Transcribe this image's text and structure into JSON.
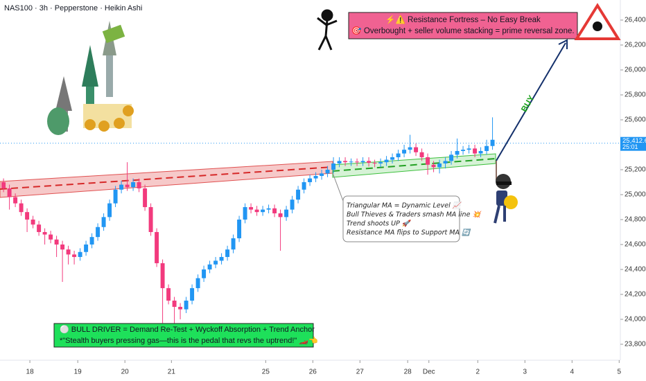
{
  "chart_data": {
    "type": "candlestick",
    "title": "NAS100 · 3h · Pepperstone · Heikin Ashi",
    "up_color": "#2196f3",
    "down_color": "#f23a7d",
    "xlim": [
      -0.6,
      104.7
    ],
    "xticks": [
      {
        "value": 4.47,
        "label": "18"
      },
      {
        "value": 12.6,
        "label": "19"
      },
      {
        "value": 20.6,
        "label": "20"
      },
      {
        "value": 28.5,
        "label": "21"
      },
      {
        "value": 44.5,
        "label": "25"
      },
      {
        "value": 52.5,
        "label": "26"
      },
      {
        "value": 60.5,
        "label": "27"
      },
      {
        "value": 68.6,
        "label": "28"
      },
      {
        "value": 72.2,
        "label": "Dec"
      },
      {
        "value": 80.5,
        "label": "2"
      },
      {
        "value": 88.5,
        "label": "3"
      },
      {
        "value": 96.5,
        "label": "4"
      },
      {
        "value": 104.5,
        "label": "5"
      }
    ],
    "ylim": [
      23672,
      26561
    ],
    "yticks": [
      {
        "value": 23800,
        "label": "23,800.0"
      },
      {
        "value": 24000,
        "label": "24,000.0"
      },
      {
        "value": 24200,
        "label": "24,200.0"
      },
      {
        "value": 24400,
        "label": "24,400.0"
      },
      {
        "value": 24600,
        "label": "24,600.0"
      },
      {
        "value": 24800,
        "label": "24,800.0"
      },
      {
        "value": 25000,
        "label": "25,000.0"
      },
      {
        "value": 25200,
        "label": "25,200.0"
      },
      {
        "value": 25400,
        "label": "25,400.0"
      },
      {
        "value": 25600,
        "label": "25,600.0"
      },
      {
        "value": 25800,
        "label": "25,800.0"
      },
      {
        "value": 26000,
        "label": "26,000.0"
      },
      {
        "value": 26200,
        "label": "26,200.0"
      },
      {
        "value": 26400,
        "label": "26,400.0"
      }
    ],
    "last_price": {
      "value": 25412.6,
      "label": "25,412.6"
    },
    "countdown": "25:01",
    "open": [
      25100,
      25050,
      24980,
      24930,
      24860,
      24800,
      24760,
      24700,
      24680,
      24640,
      24600,
      24560,
      24520,
      24500,
      24540,
      24600,
      24660,
      24740,
      24820,
      24930,
      25040,
      25080,
      25060,
      25100,
      25050,
      24900,
      24700,
      24450,
      24250,
      24150,
      24100,
      24080,
      24150,
      24250,
      24330,
      24400,
      24440,
      24470,
      24500,
      24560,
      24650,
      24800,
      24900,
      24880,
      24860,
      24880,
      24890,
      24850,
      24820,
      24880,
      24960,
      25040,
      25100,
      25130,
      25150,
      25170,
      25200,
      25250,
      25270,
      25260,
      25265,
      25260,
      25270,
      25255,
      25250,
      25260,
      25280,
      25300,
      25330,
      25360,
      25380,
      25340,
      25300,
      25240,
      25220,
      25250,
      25270,
      25320,
      25350,
      25360,
      25370,
      25330,
      25350,
      25390
    ],
    "high": [
      25130,
      25080,
      25010,
      24960,
      24890,
      24830,
      24790,
      24730,
      24710,
      24670,
      24630,
      24590,
      24550,
      24570,
      24630,
      24690,
      24770,
      24850,
      24960,
      25070,
      25110,
      25260,
      25130,
      25130,
      25080,
      24930,
      24730,
      24480,
      24280,
      24180,
      24130,
      24180,
      24280,
      24360,
      24430,
      24470,
      24500,
      24530,
      24590,
      24680,
      24830,
      24930,
      24930,
      24910,
      24910,
      24920,
      24920,
      24880,
      24910,
      24990,
      25070,
      25130,
      25160,
      25180,
      25200,
      25230,
      25300,
      25300,
      25300,
      25290,
      25290,
      25300,
      25300,
      25280,
      25290,
      25310,
      25330,
      25360,
      25400,
      25480,
      25410,
      25370,
      25330,
      25270,
      25280,
      25300,
      25350,
      25450,
      25390,
      25400,
      25400,
      25380,
      25440,
      25620
    ],
    "low": [
      25020,
      24880,
      24900,
      24830,
      24700,
      24730,
      24670,
      24600,
      24610,
      24500,
      24300,
      24440,
      24440,
      24470,
      24510,
      24570,
      24630,
      24710,
      24790,
      24900,
      25010,
      25030,
      25030,
      25020,
      24870,
      24670,
      24420,
      23970,
      24120,
      23960,
      24000,
      24050,
      24120,
      24220,
      24300,
      24370,
      24410,
      24440,
      24470,
      24530,
      24620,
      24770,
      24850,
      24830,
      24830,
      24850,
      24820,
      24550,
      24790,
      24850,
      24930,
      25010,
      25070,
      25100,
      25120,
      25140,
      25170,
      25220,
      25230,
      25230,
      25230,
      25230,
      25225,
      25220,
      25220,
      25230,
      25250,
      25270,
      25300,
      25330,
      25310,
      25270,
      25160,
      25180,
      25170,
      25210,
      25240,
      25290,
      25320,
      25330,
      25300,
      25300,
      25320,
      25360
    ],
    "close": [
      25050,
      24980,
      24930,
      24860,
      24800,
      24760,
      24700,
      24680,
      24640,
      24600,
      24560,
      24520,
      24500,
      24540,
      24600,
      24660,
      24740,
      24820,
      24930,
      25040,
      25080,
      25060,
      25100,
      25050,
      24900,
      24700,
      24450,
      24250,
      24150,
      24100,
      24080,
      24150,
      24250,
      24330,
      24400,
      24440,
      24470,
      24500,
      24560,
      24650,
      24800,
      24900,
      24880,
      24860,
      24880,
      24890,
      24850,
      24820,
      24880,
      24960,
      25040,
      25100,
      25130,
      25150,
      25170,
      25200,
      25250,
      25270,
      25260,
      25265,
      25260,
      25270,
      25255,
      25250,
      25260,
      25280,
      25300,
      25330,
      25360,
      25380,
      25340,
      25300,
      25240,
      25220,
      25250,
      25270,
      25320,
      25350,
      25360,
      25370,
      25330,
      25350,
      25390,
      25440
    ],
    "annotations": {
      "resistance_title": "⚡⚠️ Resistance Fortress – No Easy Break",
      "resistance_text": "🎯 Overbought + seller volume stacking = prime reversal zone.",
      "buy": "BUY",
      "callout": [
        "Triangular MA = Dynamic Level 📈",
        "Bull Thieves & Traders smash MA line 💥",
        "Trend shoots UP 🚀",
        "Resistance MA flips to Support MA 🔄"
      ],
      "driver_title": "⚪ BULL DRIVER = Demand Re-Test + Wyckoff Absorption + Trend Anchor",
      "driver_text": "*\"Stealth buyers pressing gas—this is the pedal that revs the uptrend!\" 🏎️👈"
    }
  }
}
